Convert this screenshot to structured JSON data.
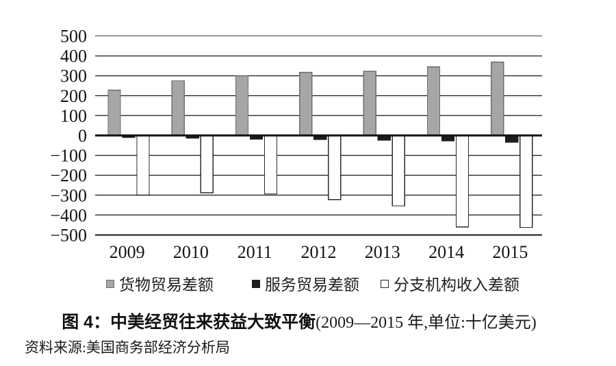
{
  "title": {
    "main": "图 4：中美经贸往来获益大致平衡",
    "sub": "(2009—2015 年,单位:十亿美元)"
  },
  "source": "资料来源:美国商务部经济分析局",
  "chart_data": {
    "type": "bar",
    "title": "图 4：中美经贸往来获益大致平衡(2009—2015 年,单位:十亿美元)",
    "unit": "十亿美元",
    "categories": [
      "2009",
      "2010",
      "2011",
      "2012",
      "2013",
      "2014",
      "2015"
    ],
    "series": [
      {
        "name": "货物贸易差额",
        "color": "#a6a6a6",
        "border": "#6e6e6e",
        "values": [
          228,
          275,
          300,
          317,
          322,
          344,
          369
        ]
      },
      {
        "name": "服务贸易差额",
        "color": "#1c1c1c",
        "border": "#1c1c1c",
        "values": [
          -10,
          -14,
          -18,
          -20,
          -23,
          -27,
          -33
        ]
      },
      {
        "name": "分支机构收入差额",
        "color": "#ffffff",
        "border": "#2a2a2a",
        "values": [
          -300,
          -288,
          -294,
          -322,
          -354,
          -460,
          -462
        ]
      }
    ],
    "ylim": [
      -500,
      500
    ],
    "ytick_step": 100,
    "ytick_labels": [
      "500",
      "400",
      "300",
      "200",
      "100",
      "0",
      "−100",
      "−200",
      "−300",
      "−400",
      "−500"
    ],
    "grid": true,
    "legend_position": "bottom"
  }
}
